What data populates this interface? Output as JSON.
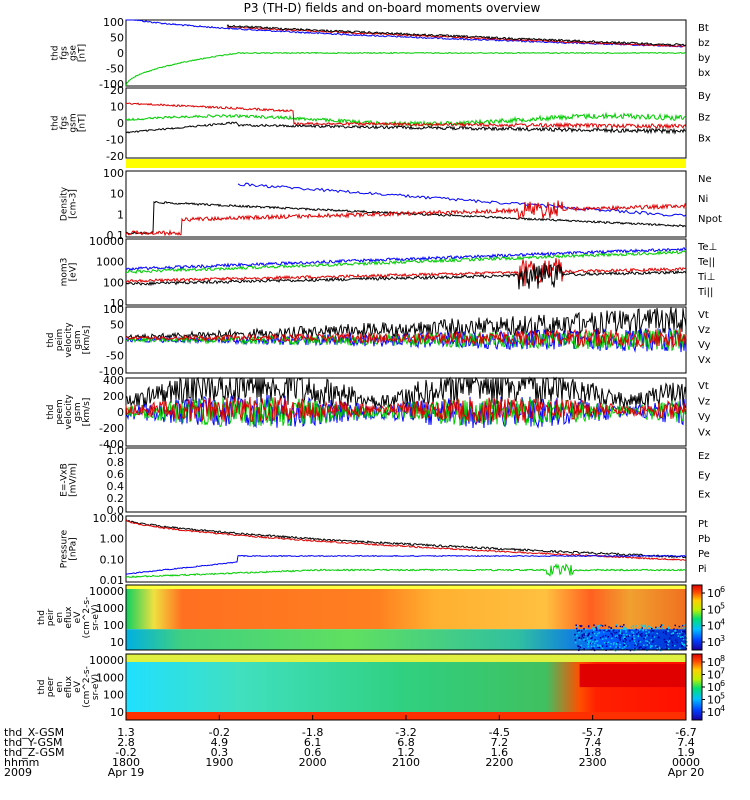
{
  "title": "P3 (TH-D) fields and on-board moments overview",
  "chart_data": [
    {
      "type": "line",
      "id": "fgs_gse",
      "ylabel": [
        "thd",
        "fgs",
        "gse",
        "[nT]"
      ],
      "ylim": [
        -100,
        100
      ],
      "yticks": [
        100,
        50,
        0,
        -50,
        -100
      ],
      "legend": [
        {
          "name": "Bt",
          "color": "#000000"
        },
        {
          "name": "bz",
          "color": "#dd0000"
        },
        {
          "name": "by",
          "color": "#00cc00"
        },
        {
          "name": "bx",
          "color": "#0000ff"
        }
      ]
    },
    {
      "type": "line",
      "id": "fgs_gsm",
      "ylabel": [
        "thd",
        "fgs",
        "gsm",
        "[nT]"
      ],
      "ylim": [
        -25,
        30
      ],
      "yticks": [
        20,
        10,
        0,
        -10,
        -20
      ],
      "legend": [
        {
          "name": "By",
          "color": "#00cc00"
        },
        {
          "name": "Bz",
          "color": "#dd0000"
        },
        {
          "name": "Bx",
          "color": "#000000"
        }
      ]
    },
    {
      "type": "bar",
      "id": "mode_bar",
      "color": "#ffff00"
    },
    {
      "type": "line",
      "id": "density",
      "ylabel": [
        "Density",
        "[cm-3]"
      ],
      "log": true,
      "yticks": [
        "100",
        "10",
        "1",
        "0.1"
      ],
      "legend": [
        {
          "name": "Ne",
          "color": "#dd0000"
        },
        {
          "name": "Ni",
          "color": "#000000"
        },
        {
          "name": "Npot",
          "color": "#0000ff"
        }
      ]
    },
    {
      "type": "line",
      "id": "temperature",
      "ylabel": [
        "mom3",
        "[eV]"
      ],
      "log": true,
      "yticks": [
        "10000",
        "1000",
        "100",
        "10"
      ],
      "legend": [
        {
          "name": "Te⊥",
          "color": "#dd0000"
        },
        {
          "name": "Te||",
          "color": "#000000"
        },
        {
          "name": "Ti⊥",
          "color": "#0000ff"
        },
        {
          "name": "Ti||",
          "color": "#00cc00"
        }
      ]
    },
    {
      "type": "line",
      "id": "peim_velocity",
      "ylabel": [
        "thd",
        "peim",
        "velocity",
        "gsm",
        "[km/s]"
      ],
      "ylim": [
        -100,
        100
      ],
      "yticks": [
        100,
        50,
        0,
        -50,
        -100
      ],
      "legend": [
        {
          "name": "Vt",
          "color": "#000000"
        },
        {
          "name": "Vz",
          "color": "#dd0000"
        },
        {
          "name": "Vy",
          "color": "#00cc00"
        },
        {
          "name": "Vx",
          "color": "#0000ff"
        }
      ]
    },
    {
      "type": "line",
      "id": "peem_velocity",
      "ylabel": [
        "thd",
        "peem",
        "velocity",
        "gsm",
        "[km/s]"
      ],
      "ylim": [
        -400,
        400
      ],
      "yticks": [
        400,
        200,
        0,
        -200,
        -400
      ],
      "legend": [
        {
          "name": "Vt",
          "color": "#000000"
        },
        {
          "name": "Vz",
          "color": "#dd0000"
        },
        {
          "name": "Vy",
          "color": "#00cc00"
        },
        {
          "name": "Vx",
          "color": "#0000ff"
        }
      ]
    },
    {
      "type": "line",
      "id": "e_vxb",
      "ylabel": [
        "E=-VxB",
        "[mV/m]"
      ],
      "ylim": [
        0,
        1
      ],
      "yticks": [
        "1.0",
        "0.8",
        "0.6",
        "0.4",
        "0.2",
        "0.0"
      ],
      "legend": [
        {
          "name": "Ez",
          "color": "#dd0000"
        },
        {
          "name": "Ey",
          "color": "#00cc00"
        },
        {
          "name": "Ex",
          "color": "#0000ff"
        }
      ]
    },
    {
      "type": "line",
      "id": "pressure",
      "ylabel": [
        "Pressure",
        "[nPa]"
      ],
      "log": true,
      "yticks": [
        "10.00",
        "1.00",
        "0.10",
        "0.01"
      ],
      "legend": [
        {
          "name": "Pt",
          "color": "#000000"
        },
        {
          "name": "Pb",
          "color": "#dd0000"
        },
        {
          "name": "Pe",
          "color": "#00cc00"
        },
        {
          "name": "Pi",
          "color": "#0000ff"
        }
      ]
    },
    {
      "type": "heatmap",
      "id": "peir_spec",
      "ylabel": [
        "thd",
        "peir",
        "en",
        "eflux",
        "eV",
        "(cm^2-s-",
        "sr-eV)"
      ],
      "yticks": [
        "10000",
        "1000",
        "100",
        "10"
      ],
      "colorbar": [
        "10",
        "10",
        "10",
        "10"
      ],
      "colorbar_exp": [
        "6",
        "5",
        "4",
        "3"
      ]
    },
    {
      "type": "heatmap",
      "id": "peer_spec",
      "ylabel": [
        "thd",
        "peer",
        "en",
        "eflux",
        "eV",
        "(cm^2-s-",
        "sr-eV)"
      ],
      "yticks": [
        "10000",
        "1000",
        "100",
        "10"
      ],
      "colorbar": [
        "10",
        "10",
        "10",
        "10",
        "10"
      ],
      "colorbar_exp": [
        "8",
        "7",
        "6",
        "5",
        "4"
      ]
    }
  ],
  "x_axis": {
    "row_labels": [
      "thd_X-GSM",
      "thd_Y-GSM",
      "thd_Z-GSM",
      "hhmm",
      "2009"
    ],
    "columns": [
      {
        "values": [
          "1.3",
          "2.8",
          "-0.2",
          "1800",
          "Apr 19"
        ]
      },
      {
        "values": [
          "-0.2",
          "4.9",
          "0.3",
          "1900",
          ""
        ]
      },
      {
        "values": [
          "-1.8",
          "6.1",
          "0.6",
          "2000",
          ""
        ]
      },
      {
        "values": [
          "-3.2",
          "6.8",
          "1.2",
          "2100",
          ""
        ]
      },
      {
        "values": [
          "-4.5",
          "7.2",
          "1.6",
          "2200",
          ""
        ]
      },
      {
        "values": [
          "-5.7",
          "7.4",
          "1.8",
          "2300",
          ""
        ]
      },
      {
        "values": [
          "-6.7",
          "7.4",
          "1.9",
          "0000",
          "Apr 20"
        ]
      }
    ]
  }
}
